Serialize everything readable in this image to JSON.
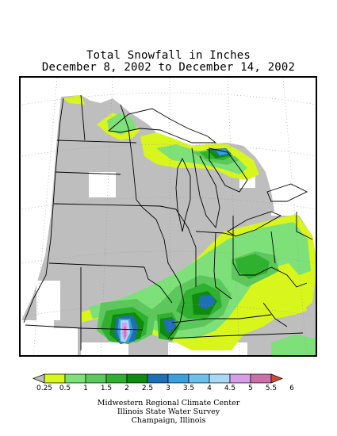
{
  "title": {
    "line1": "Total Snowfall in Inches",
    "line2": "December 8, 2002 to December 14, 2002"
  },
  "legend": {
    "labels": [
      "0.25",
      "0.5",
      "1",
      "1.5",
      "2",
      "2.5",
      "3",
      "3.5",
      "4",
      "4.5",
      "5",
      "5.5",
      "6"
    ],
    "colors": [
      "#bebebe",
      "#d8f51c",
      "#7ee078",
      "#5cc85c",
      "#2fb02f",
      "#0f8c0f",
      "#1e6fb3",
      "#3a9fdc",
      "#6cc1ec",
      "#a8d8f4",
      "#d79ee8",
      "#c872a8",
      "#d04b30"
    ]
  },
  "credits": {
    "line1": "Midwestern Regional Climate Center",
    "line2": "Illinois State Water Survey",
    "line3": "Champaign, Illinois"
  }
}
